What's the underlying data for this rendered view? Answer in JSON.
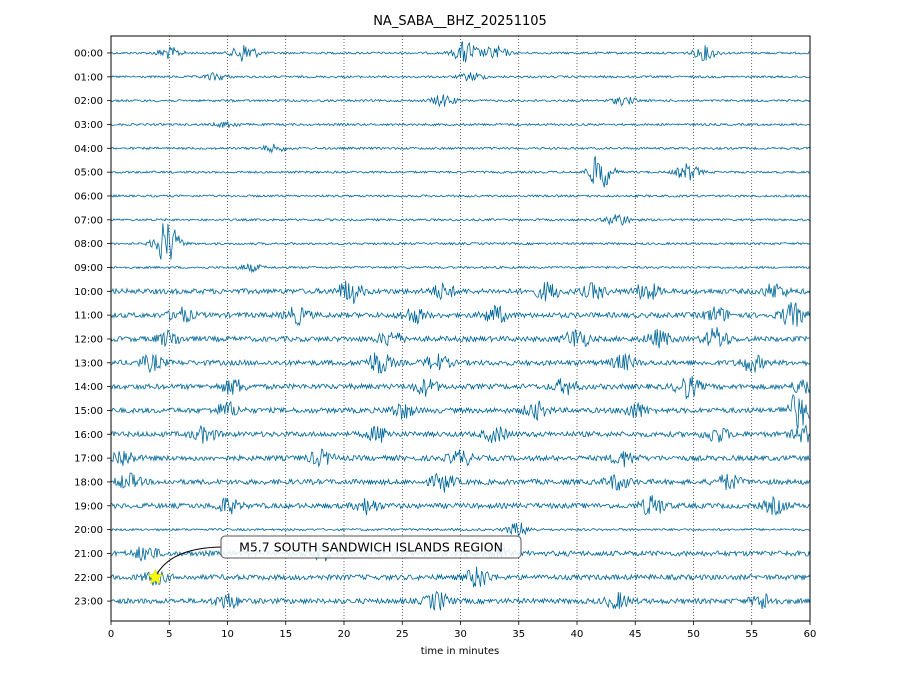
{
  "chart_data": {
    "type": "seismogram",
    "title": "NA_SABA__BHZ_20251105",
    "xlabel": "time in minutes",
    "xlim": [
      0,
      60
    ],
    "x_ticks": [
      0,
      5,
      10,
      15,
      20,
      25,
      30,
      35,
      40,
      45,
      50,
      55,
      60
    ],
    "vertical_grid": true,
    "grid_style": "dotted",
    "trace_color": "#00689a",
    "rows": [
      {
        "label": "00:00",
        "bursts": [
          [
            5,
            0.8
          ],
          [
            11.5,
            1.4
          ],
          [
            30.5,
            1.7
          ],
          [
            33,
            1.0
          ],
          [
            51,
            1.0
          ]
        ]
      },
      {
        "label": "01:00",
        "bursts": [
          [
            9,
            0.5
          ],
          [
            31,
            0.6
          ]
        ]
      },
      {
        "label": "02:00",
        "bursts": [
          [
            28.5,
            0.8
          ],
          [
            44,
            0.6
          ]
        ]
      },
      {
        "label": "03:00",
        "bursts": [
          [
            10,
            0.4
          ]
        ]
      },
      {
        "label": "04:00",
        "bursts": [
          [
            14,
            0.5
          ]
        ]
      },
      {
        "label": "05:00",
        "bursts": [
          [
            42,
            2.6
          ],
          [
            49.5,
            1.2
          ]
        ]
      },
      {
        "label": "06:00",
        "bursts": []
      },
      {
        "label": "07:00",
        "bursts": [
          [
            43.5,
            0.9
          ]
        ]
      },
      {
        "label": "08:00",
        "bursts": [
          [
            4.8,
            3.2
          ]
        ]
      },
      {
        "label": "09:00",
        "bursts": [
          [
            12,
            0.5
          ]
        ]
      },
      {
        "label": "10:00",
        "bursts": [
          [
            20.5,
            1.6
          ],
          [
            28.5,
            1.0
          ],
          [
            37.5,
            1.2
          ],
          [
            41.5,
            1.0
          ],
          [
            46,
            1.2
          ],
          [
            57,
            1.0
          ]
        ]
      },
      {
        "label": "11:00",
        "bursts": [
          [
            6,
            1.0
          ],
          [
            16,
            1.1
          ],
          [
            26,
            1.0
          ],
          [
            33,
            1.2
          ],
          [
            52,
            1.0
          ],
          [
            58.5,
            1.6
          ]
        ]
      },
      {
        "label": "12:00",
        "bursts": [
          [
            5,
            1.0
          ],
          [
            24,
            1.0
          ],
          [
            40,
            1.4
          ],
          [
            47,
            1.1
          ],
          [
            52,
            1.5
          ]
        ]
      },
      {
        "label": "13:00",
        "bursts": [
          [
            3.5,
            1.0
          ],
          [
            23,
            1.6
          ],
          [
            28,
            1.0
          ],
          [
            44,
            1.0
          ],
          [
            55,
            1.1
          ]
        ]
      },
      {
        "label": "14:00",
        "bursts": [
          [
            10.5,
            1.0
          ],
          [
            27,
            1.1
          ],
          [
            39,
            1.0
          ],
          [
            49.5,
            1.5
          ],
          [
            59.5,
            1.1
          ]
        ]
      },
      {
        "label": "15:00",
        "bursts": [
          [
            10,
            1.0
          ],
          [
            25,
            1.0
          ],
          [
            36.5,
            1.1
          ],
          [
            45,
            1.0
          ],
          [
            59,
            2.4
          ]
        ]
      },
      {
        "label": "16:00",
        "bursts": [
          [
            8,
            1.0
          ],
          [
            23,
            1.0
          ],
          [
            33,
            1.0
          ],
          [
            52,
            1.0
          ],
          [
            59.5,
            1.0
          ]
        ]
      },
      {
        "label": "17:00",
        "bursts": [
          [
            1,
            1.1
          ],
          [
            18,
            1.0
          ],
          [
            30,
            1.0
          ],
          [
            44,
            1.0
          ]
        ]
      },
      {
        "label": "18:00",
        "bursts": [
          [
            1.5,
            1.0
          ],
          [
            28.5,
            1.2
          ],
          [
            43.5,
            1.0
          ],
          [
            53,
            1.0
          ]
        ]
      },
      {
        "label": "19:00",
        "bursts": [
          [
            10,
            1.0
          ],
          [
            22,
            1.0
          ],
          [
            46.5,
            1.4
          ],
          [
            57,
            1.0
          ]
        ]
      },
      {
        "label": "20:00",
        "bursts": [
          [
            35,
            1.0
          ]
        ]
      },
      {
        "label": "21:00",
        "bursts": [
          [
            3,
            1.0
          ],
          [
            18,
            0.9
          ],
          [
            33,
            1.0
          ]
        ]
      },
      {
        "label": "22:00",
        "bursts": [
          [
            3.8,
            0.9
          ],
          [
            31.5,
            1.4
          ]
        ]
      },
      {
        "label": "23:00",
        "bursts": [
          [
            10,
            1.0
          ],
          [
            28,
            1.2
          ],
          [
            43.5,
            1.0
          ],
          [
            56,
            1.0
          ]
        ]
      }
    ],
    "event": {
      "label": "M5.7 SOUTH SANDWICH ISLANDS REGION",
      "row": "22:00",
      "minute": 3.8,
      "marker": "star",
      "marker_color": "#ffff00"
    }
  }
}
